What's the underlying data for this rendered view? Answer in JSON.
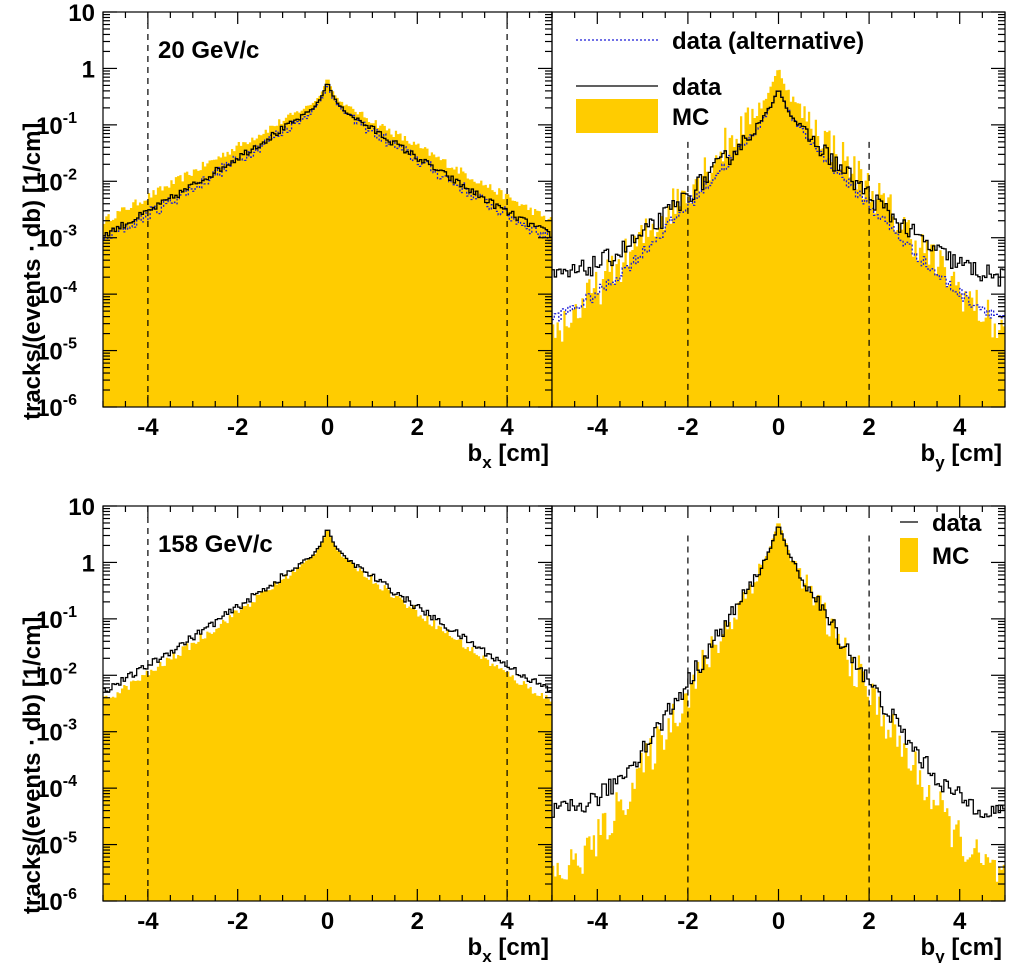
{
  "chart_data": {
    "type": "histogram",
    "y_title": "tracks/(events · db) [1/cm]",
    "y_scale": "log",
    "ylim": [
      1e-06,
      10
    ],
    "y_ticks": [
      {
        "v": 1e-06,
        "mant": "10",
        "exp": "-6"
      },
      {
        "v": 1e-05,
        "mant": "10",
        "exp": "-5"
      },
      {
        "v": 0.0001,
        "mant": "10",
        "exp": "-4"
      },
      {
        "v": 0.001,
        "mant": "10",
        "exp": "-3"
      },
      {
        "v": 0.01,
        "mant": "10",
        "exp": "-2"
      },
      {
        "v": 0.1,
        "mant": "10",
        "exp": "-1"
      },
      {
        "v": 1,
        "mant": "1",
        "exp": ""
      },
      {
        "v": 10,
        "mant": "10",
        "exp": ""
      }
    ],
    "x_ticks": [
      -4,
      -2,
      0,
      2,
      4
    ],
    "grid": false,
    "rows": [
      {
        "momentum_label": "20 GeV/c",
        "panels": [
          {
            "axis_var": "b",
            "axis_sub": "x",
            "axis_unit": " [cm]",
            "xlim": [
              -5,
              5
            ],
            "cuts": [
              -4,
              4
            ],
            "series": {
              "mc": {
                "peak": 0.75,
                "s1": 0.085,
                "s2": 0.95,
                "tail": 0.0007,
                "tailslope": 0.22
              },
              "data": {
                "peak": 0.6,
                "s1": 0.1,
                "s2": 0.85,
                "tail": 0.0009,
                "tailslope": 0.18
              },
              "alt": {
                "peak": 0.55,
                "s1": 0.1,
                "s2": 0.85,
                "tail": 0.0007,
                "tailslope": 0.2
              }
            }
          },
          {
            "axis_var": "b",
            "axis_sub": "y",
            "axis_unit": " [cm]",
            "xlim": [
              -5,
              5
            ],
            "cuts": [
              -2,
              2
            ],
            "series": {
              "mc": {
                "peak": 1.1,
                "s1": 0.1,
                "s2": 0.48,
                "tail": 2e-05,
                "tailslope": 0.3
              },
              "data": {
                "peak": 0.45,
                "s1": 0.13,
                "s2": 0.55,
                "tail": 0.00045,
                "tailslope": 0.2
              },
              "alt": {
                "peak": 0.45,
                "s1": 0.13,
                "s2": 0.5,
                "tail": 0.0001,
                "tailslope": 0.25
              }
            },
            "legend": [
              {
                "key": "alt",
                "label": "data (alternative)"
              },
              {
                "key": "data",
                "label": "data"
              },
              {
                "key": "mc",
                "label": "MC"
              }
            ]
          }
        ]
      },
      {
        "momentum_label": "158 GeV/c",
        "panels": [
          {
            "axis_var": "b",
            "axis_sub": "x",
            "axis_unit": " [cm]",
            "xlim": [
              -5,
              5
            ],
            "cuts": [
              -4,
              4
            ],
            "series": {
              "mc": {
                "peak": 4.2,
                "s1": 0.1,
                "s2": 0.75,
                "tail": 0.004,
                "tailslope": 0.25
              },
              "data": {
                "peak": 4.3,
                "s1": 0.1,
                "s2": 0.8,
                "tail": 0.004,
                "tailslope": 0.2
              }
            }
          },
          {
            "axis_var": "b",
            "axis_sub": "y",
            "axis_unit": " [cm]",
            "xlim": [
              -5,
              5
            ],
            "cuts": [
              -2,
              2
            ],
            "series": {
              "mc": {
                "peak": 5.8,
                "s1": 0.1,
                "s2": 0.32,
                "tail": 1e-05,
                "tailslope": 0.3
              },
              "data": {
                "peak": 5.0,
                "s1": 0.1,
                "s2": 0.35,
                "tail": 0.00012,
                "tailslope": 0.25
              }
            },
            "legend": [
              {
                "key": "data",
                "label": "data"
              },
              {
                "key": "mc",
                "label": "MC"
              }
            ]
          }
        ]
      }
    ]
  }
}
